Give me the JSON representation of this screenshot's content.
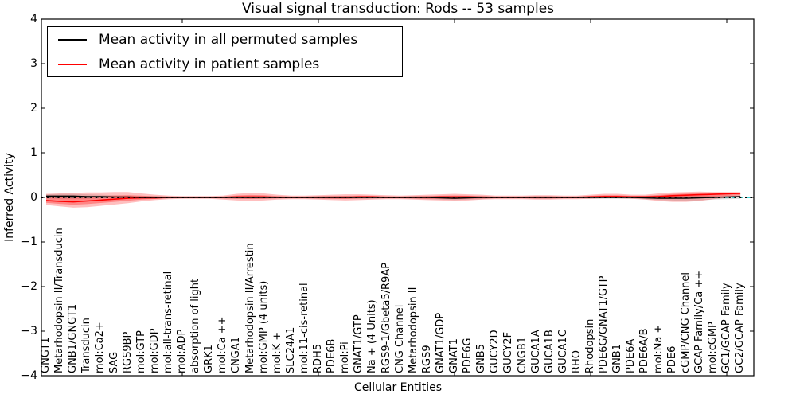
{
  "title": "Visual signal transduction: Rods -- 53 samples",
  "axes": {
    "x_label": "Cellular Entities",
    "y_label": "Inferred Activity",
    "y_tick_labels": [
      "4",
      "3",
      "2",
      "1",
      "0",
      "−1",
      "−2",
      "−3",
      "−4"
    ]
  },
  "legend": {
    "items": [
      {
        "label": "Mean activity in all permuted samples",
        "color": "#000000"
      },
      {
        "label": "Mean activity in patient samples",
        "color": "#ff0000"
      }
    ]
  },
  "colors": {
    "patient_line": "#ff0000",
    "permuted_line": "#000000",
    "patient_band": "#ff0000",
    "permuted_band": "#888888",
    "zero_dashed_line": "#00c8c8",
    "zero_dotted_line": "#000000",
    "frame": "#000000",
    "background": "#ffffff"
  },
  "chart_data": {
    "type": "line",
    "title": "Visual signal transduction: Rods -- 53 samples",
    "xlabel": "Cellular Entities",
    "ylabel": "Inferred Activity",
    "ylim": [
      -4,
      4
    ],
    "y_ticks": [
      4,
      3,
      2,
      1,
      0,
      -1,
      -2,
      -3,
      -4
    ],
    "x_major_ticks": [
      10,
      20,
      30,
      40,
      50
    ],
    "grid": false,
    "legend_position": "upper left",
    "zero_line": true,
    "zero_line_color": "#00c8c8",
    "categories": [
      "GNGT1",
      "Metarhodopsin II/Transducin",
      "GNB1/GNGT1",
      "Transducin",
      "mol:Ca2+",
      "SAG",
      "RGS9BP",
      "mol:GTP",
      "mol:GDP",
      "mol:all-trans-retinal",
      "mol:ADP",
      "absorption of light",
      "GRK1",
      "mol:Ca ++",
      "CNGA1",
      "Metarhodopsin II/Arrestin",
      "mol:GMP (4 units)",
      "mol:K +",
      "SLC24A1",
      "mol:11-cis-retinal",
      "RDH5",
      "PDE6B",
      "mol:Pi",
      "GNAT1/GTP",
      "Na + (4 Units)",
      "RGS9-1/Gbeta5/R9AP",
      "CNG Channel",
      "Metarhodopsin II",
      "RGS9",
      "GNAT1/GDP",
      "GNAT1",
      "PDE6G",
      "GNB5",
      "GUCY2D",
      "GUCY2F",
      "CNGB1",
      "GUCA1A",
      "GUCA1B",
      "GUCA1C",
      "RHO",
      "Rhodopsin",
      "PDE6G/GNAT1/GTP",
      "GNB1",
      "PDE6A",
      "PDE6A/B",
      "mol:Na +",
      "PDE6",
      "cGMP/CNG Channel",
      "GCAP Family/Ca ++",
      "mol:cGMP",
      "GC1/GCAP Family",
      "GC2/GCAP Family"
    ],
    "series": [
      {
        "name": "Mean activity in all permuted samples",
        "color": "#000000",
        "values": [
          0.03,
          0.03,
          0.03,
          0.02,
          0.02,
          0.01,
          0.01,
          0,
          0,
          0,
          0,
          0,
          0,
          0,
          0,
          0,
          0,
          0,
          0,
          0,
          0,
          0,
          0,
          0,
          0,
          0,
          0,
          0,
          0,
          -0.01,
          -0.02,
          -0.01,
          0,
          0,
          0,
          0,
          0,
          0,
          0,
          0,
          0,
          0,
          0,
          0,
          -0.01,
          -0.02,
          -0.02,
          -0.02,
          -0.01,
          0,
          0.01,
          0.02
        ],
        "upper": [
          0.07,
          0.08,
          0.08,
          0.07,
          0.06,
          0.05,
          0.04,
          0.03,
          0.03,
          0.02,
          0.02,
          0.02,
          0.02,
          0.02,
          0.03,
          0.03,
          0.03,
          0.02,
          0.02,
          0.02,
          0.03,
          0.03,
          0.03,
          0.03,
          0.03,
          0.02,
          0.02,
          0.03,
          0.03,
          0.03,
          0.03,
          0.03,
          0.03,
          0.02,
          0.02,
          0.02,
          0.03,
          0.03,
          0.02,
          0.02,
          0.03,
          0.03,
          0.03,
          0.03,
          0.03,
          0.04,
          0.04,
          0.04,
          0.04,
          0.04,
          0.04,
          0.05
        ],
        "lower": [
          -0.02,
          -0.03,
          -0.03,
          -0.03,
          -0.02,
          -0.02,
          -0.02,
          -0.03,
          -0.03,
          -0.02,
          -0.02,
          -0.02,
          -0.02,
          -0.02,
          -0.03,
          -0.03,
          -0.03,
          -0.02,
          -0.02,
          -0.02,
          -0.03,
          -0.03,
          -0.03,
          -0.03,
          -0.03,
          -0.02,
          -0.02,
          -0.03,
          -0.04,
          -0.05,
          -0.06,
          -0.05,
          -0.04,
          -0.02,
          -0.02,
          -0.02,
          -0.03,
          -0.03,
          -0.02,
          -0.02,
          -0.03,
          -0.03,
          -0.03,
          -0.03,
          -0.04,
          -0.06,
          -0.07,
          -0.08,
          -0.07,
          -0.05,
          -0.04,
          -0.03
        ]
      },
      {
        "name": "Mean activity in patient samples",
        "color": "#ff0000",
        "values": [
          -0.07,
          -0.09,
          -0.1,
          -0.08,
          -0.06,
          -0.04,
          -0.02,
          -0.01,
          -0.01,
          0,
          0,
          0,
          0,
          0,
          0.01,
          0.01,
          0.01,
          0,
          0,
          0,
          0,
          0,
          0,
          0.01,
          0.01,
          0,
          0,
          0,
          0,
          0.01,
          0.01,
          0.01,
          0,
          0,
          0,
          0,
          0,
          0,
          0,
          0,
          0.01,
          0.02,
          0.02,
          0.01,
          0.01,
          0.02,
          0.04,
          0.05,
          0.06,
          0.07,
          0.08,
          0.09
        ],
        "upper": [
          0.08,
          0.09,
          0.1,
          0.11,
          0.11,
          0.12,
          0.12,
          0.09,
          0.06,
          0.04,
          0.03,
          0.03,
          0.03,
          0.04,
          0.08,
          0.1,
          0.09,
          0.06,
          0.04,
          0.04,
          0.05,
          0.06,
          0.07,
          0.07,
          0.06,
          0.05,
          0.04,
          0.05,
          0.06,
          0.07,
          0.08,
          0.07,
          0.06,
          0.04,
          0.04,
          0.04,
          0.05,
          0.05,
          0.04,
          0.04,
          0.06,
          0.08,
          0.08,
          0.06,
          0.06,
          0.09,
          0.11,
          0.12,
          0.13,
          0.12,
          0.12,
          0.12
        ],
        "lower": [
          -0.17,
          -0.2,
          -0.23,
          -0.22,
          -0.19,
          -0.16,
          -0.13,
          -0.09,
          -0.06,
          -0.04,
          -0.03,
          -0.03,
          -0.03,
          -0.05,
          -0.07,
          -0.08,
          -0.07,
          -0.05,
          -0.04,
          -0.04,
          -0.05,
          -0.06,
          -0.07,
          -0.06,
          -0.05,
          -0.04,
          -0.04,
          -0.05,
          -0.06,
          -0.07,
          -0.08,
          -0.07,
          -0.05,
          -0.04,
          -0.04,
          -0.04,
          -0.05,
          -0.05,
          -0.04,
          -0.04,
          -0.03,
          -0.02,
          -0.02,
          -0.03,
          -0.05,
          -0.08,
          -0.1,
          -0.1,
          -0.08,
          -0.04,
          -0.01,
          0.02
        ]
      }
    ]
  }
}
